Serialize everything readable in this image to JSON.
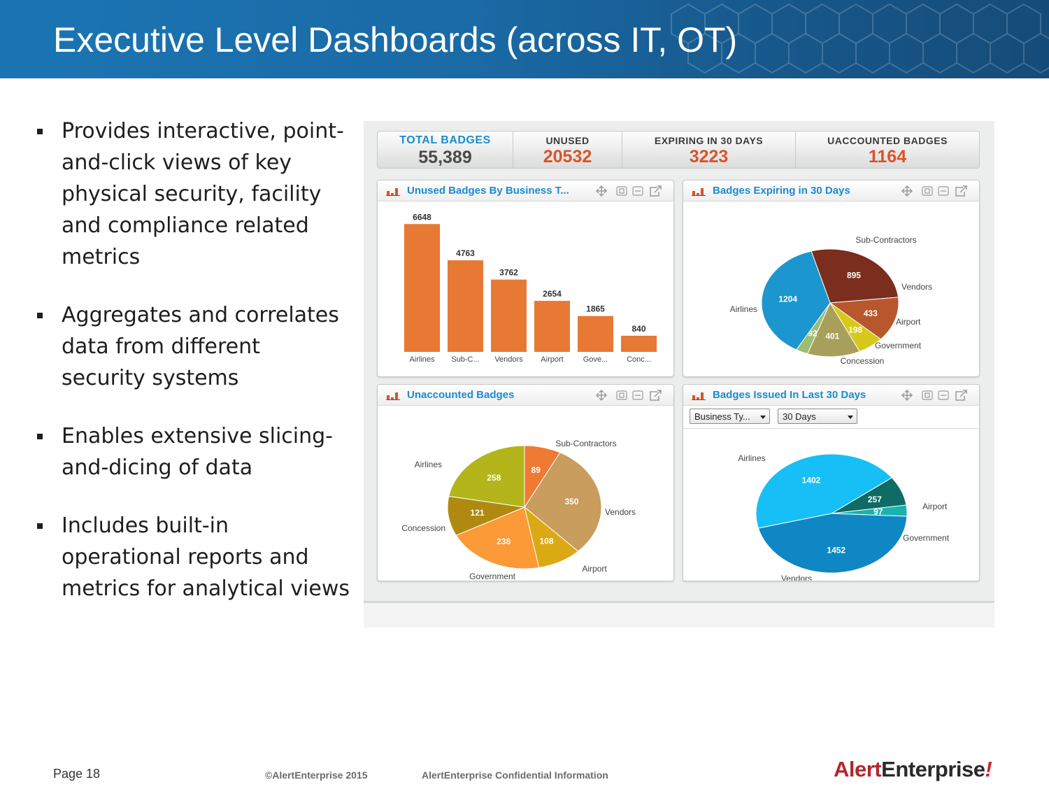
{
  "slide": {
    "title": "Executive Level Dashboards (across IT, OT)",
    "bullets": [
      "Provides interactive, point-and-click views of key physical security, facility and compliance related metrics",
      "Aggregates and correlates data from different security systems",
      "Enables extensive slicing-and-dicing of data",
      "Includes built-in operational reports and metrics for analytical views"
    ],
    "footer": {
      "page": "Page 18",
      "copyright": "©AlertEnterprise 2015",
      "confidential": "AlertEnterprise Confidential Information",
      "logo_a": "Alert",
      "logo_b": "Enterprise",
      "logo_c": "!"
    }
  },
  "kpis": [
    {
      "label": "TOTAL BADGES",
      "value": "55,389"
    },
    {
      "label": "UNUSED",
      "value": "20532"
    },
    {
      "label": "EXPIRING IN 30 DAYS",
      "value": "3223"
    },
    {
      "label": "UACCOUNTED BADGES",
      "value": "1164"
    }
  ],
  "panels": {
    "unused": {
      "title": "Unused Badges By Business T..."
    },
    "expiring": {
      "title": "Badges Expiring in 30 Days"
    },
    "unaccounted": {
      "title": "Unaccounted Badges"
    },
    "issued": {
      "title": "Badges Issued In Last 30 Days",
      "filter_type": "Business Ty...",
      "filter_range": "30 Days"
    }
  },
  "colors": {
    "accent": "#1a8cd0",
    "kpi_value": "#d9532b",
    "bar": "#e87934"
  },
  "chart_data": [
    {
      "type": "bar",
      "title": "Unused Badges By Business T...",
      "categories": [
        "Airlines",
        "Sub-C...",
        "Vendors",
        "Airport",
        "Gove...",
        "Conc..."
      ],
      "values": [
        6648,
        4763,
        3762,
        2654,
        1865,
        840
      ],
      "ylim": [
        0,
        7000
      ],
      "grid": false
    },
    {
      "type": "pie",
      "title": "Badges Expiring in 30 Days",
      "slices": [
        {
          "name": "Sub-Contractors",
          "value": 895,
          "color": "#7b2d1e"
        },
        {
          "name": "Vendors",
          "value": 433,
          "color": "#b8572e"
        },
        {
          "name": "Airport",
          "value": 198,
          "color": "#d7c81c"
        },
        {
          "name": "Government",
          "value": 401,
          "color": "#a8a05a"
        },
        {
          "name": "Concession",
          "value": 92,
          "color": "#99be74"
        },
        {
          "name": "Airlines",
          "value": 1204,
          "color": "#1b96cf"
        }
      ]
    },
    {
      "type": "pie",
      "title": "Unaccounted Badges",
      "slices": [
        {
          "name": "Sub-Contractors",
          "value": 89,
          "color": "#ee7a33"
        },
        {
          "name": "Vendors",
          "value": 350,
          "color": "#c99d5e"
        },
        {
          "name": "Airport",
          "value": 108,
          "color": "#dba913"
        },
        {
          "name": "Government",
          "value": 238,
          "color": "#fb9a36"
        },
        {
          "name": "Concession",
          "value": 121,
          "color": "#b08a10"
        },
        {
          "name": "Airlines",
          "value": 258,
          "color": "#b3b51a"
        }
      ]
    },
    {
      "type": "pie",
      "title": "Badges Issued In Last 30 Days",
      "slices": [
        {
          "name": "Airport",
          "value": 257,
          "color": "#0f6b66"
        },
        {
          "name": "Government",
          "value": 97,
          "color": "#19b2ad"
        },
        {
          "name": "Vendors",
          "value": 1452,
          "color": "#0e87c4"
        },
        {
          "name": "Airlines",
          "value": 1402,
          "color": "#16bff5"
        }
      ]
    }
  ]
}
